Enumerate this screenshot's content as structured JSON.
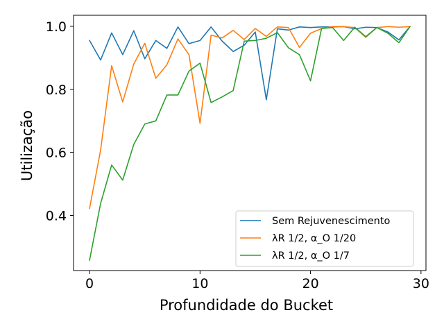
{
  "chart_data": {
    "type": "line",
    "title": "",
    "xlabel": "Profundidade do Bucket",
    "ylabel": "Utilização",
    "xlim": [
      -1.45,
      30.45
    ],
    "ylim": [
      0.225,
      1.035
    ],
    "xticks": [
      0,
      10,
      20,
      30
    ],
    "yticks": [
      0.4,
      0.6,
      0.8,
      1.0
    ],
    "xtick_labels": [
      "0",
      "10",
      "20",
      "30"
    ],
    "ytick_labels": [
      "0.4",
      "0.6",
      "0.8",
      "1.0"
    ],
    "grid": false,
    "legend_position": "lower-right",
    "x": [
      0,
      1,
      2,
      3,
      4,
      5,
      6,
      7,
      8,
      9,
      10,
      11,
      12,
      13,
      14,
      15,
      16,
      17,
      18,
      19,
      20,
      21,
      22,
      23,
      24,
      25,
      26,
      27,
      28,
      29
    ],
    "series": [
      {
        "name": "Sem Rejuvenescimento",
        "color": "#1f77b4",
        "values": [
          0.955,
          0.893,
          0.979,
          0.91,
          0.986,
          0.897,
          0.955,
          0.93,
          0.998,
          0.945,
          0.955,
          0.998,
          0.953,
          0.92,
          0.94,
          0.982,
          0.767,
          0.992,
          0.988,
          0.998,
          0.996,
          0.998,
          0.998,
          0.999,
          0.992,
          0.997,
          0.996,
          0.982,
          0.957,
          0.999
        ]
      },
      {
        "name": "λR 1/2, α_O 1/20",
        "color": "#ff7f0e",
        "values": [
          0.422,
          0.607,
          0.875,
          0.76,
          0.88,
          0.946,
          0.835,
          0.878,
          0.96,
          0.91,
          0.692,
          0.972,
          0.963,
          0.987,
          0.958,
          0.993,
          0.968,
          0.998,
          0.996,
          0.933,
          0.978,
          0.993,
          0.999,
          0.999,
          0.996,
          0.965,
          0.996,
          0.999,
          0.997,
          0.999
        ]
      },
      {
        "name": "λR 1/2, α_O 1/7",
        "color": "#2ca02c",
        "values": [
          0.258,
          0.438,
          0.56,
          0.512,
          0.625,
          0.69,
          0.7,
          0.782,
          0.782,
          0.858,
          0.883,
          0.758,
          0.776,
          0.796,
          0.953,
          0.955,
          0.962,
          0.98,
          0.932,
          0.91,
          0.827,
          0.993,
          0.996,
          0.955,
          0.997,
          0.967,
          0.996,
          0.978,
          0.948,
          0.999
        ]
      }
    ]
  }
}
